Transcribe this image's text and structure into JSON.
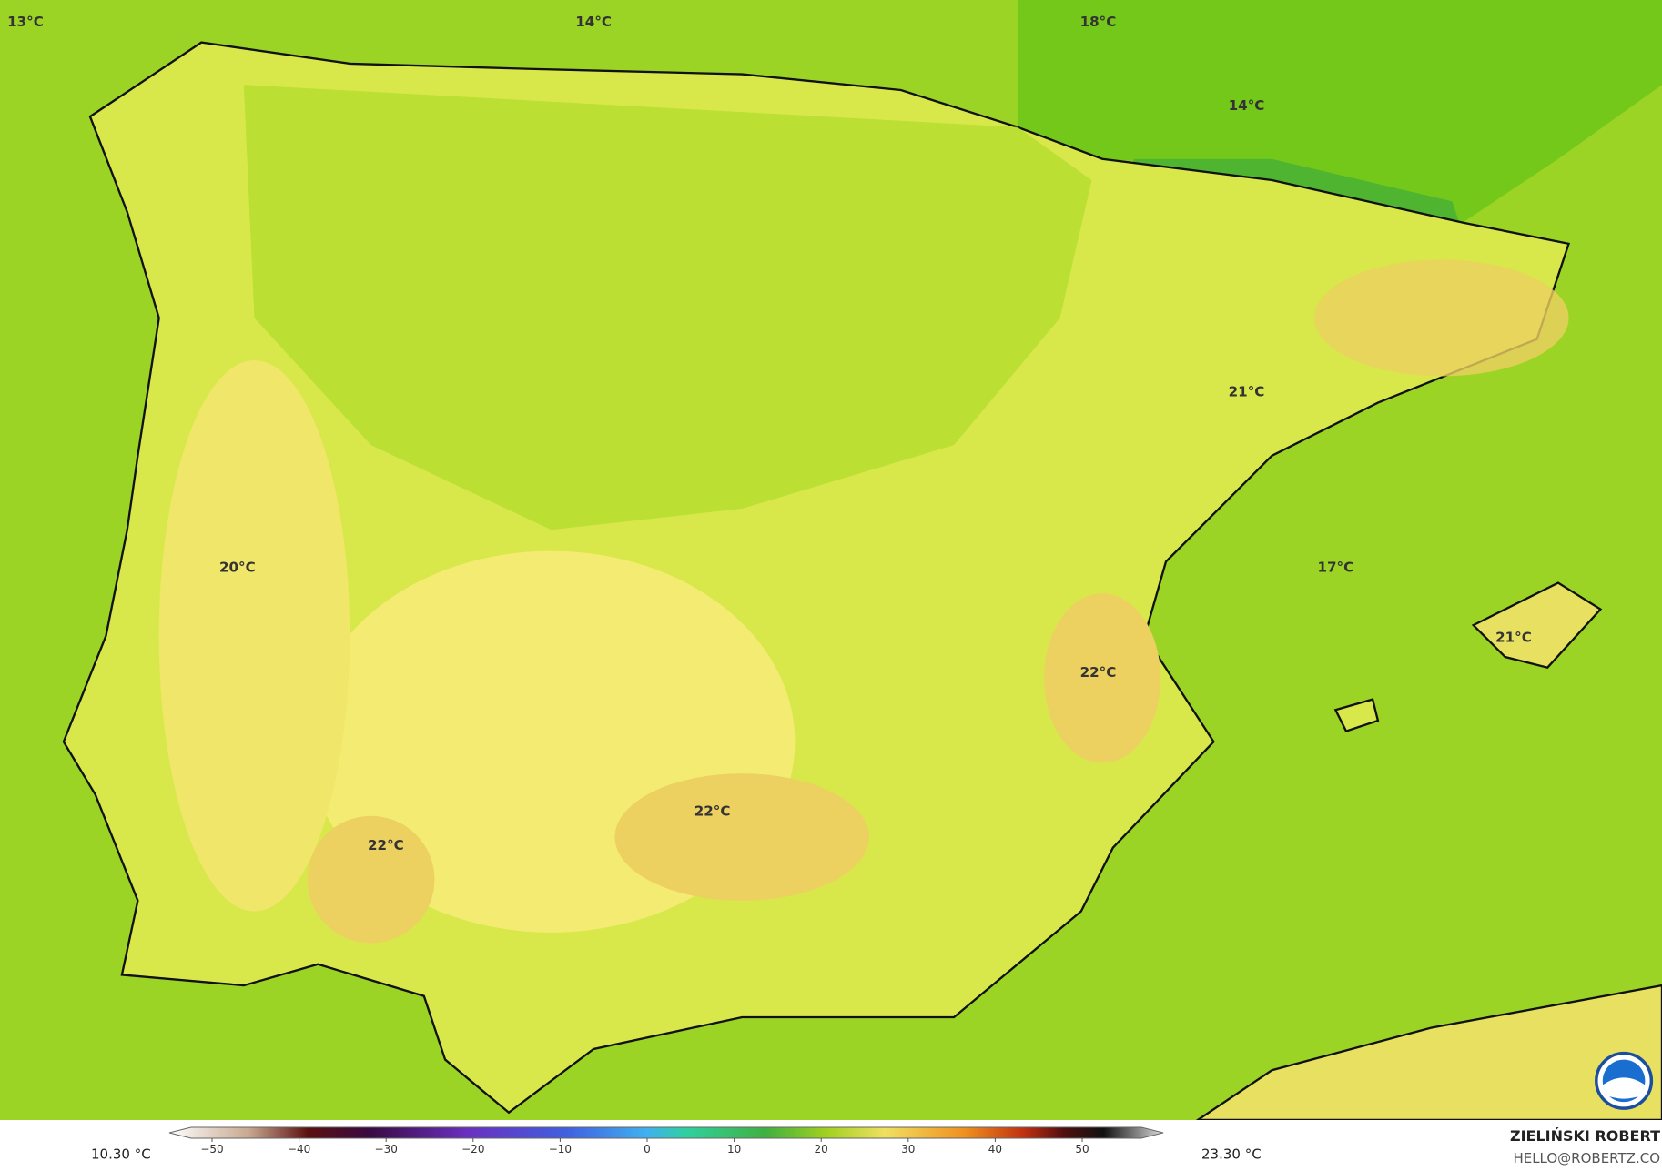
{
  "map": {
    "labels": [
      "13°C",
      "14°C",
      "18°C",
      "14°C",
      "21°C",
      "17°C",
      "20°C",
      "21°C",
      "22°C",
      "22°C",
      "22°C"
    ]
  },
  "legend": {
    "min_label": "10.30 °C",
    "max_label": "23.30 °C",
    "ticks": [
      {
        "value": -50,
        "label": "−50"
      },
      {
        "value": -40,
        "label": "−40"
      },
      {
        "value": -30,
        "label": "−30"
      },
      {
        "value": -20,
        "label": "−20"
      },
      {
        "value": -10,
        "label": "−10"
      },
      0,
      10,
      20,
      30,
      40,
      50
    ]
  },
  "credit": {
    "author": "ZIELIŃSKI ROBERT",
    "email": "HELLO@ROBERTZ.CO"
  }
}
